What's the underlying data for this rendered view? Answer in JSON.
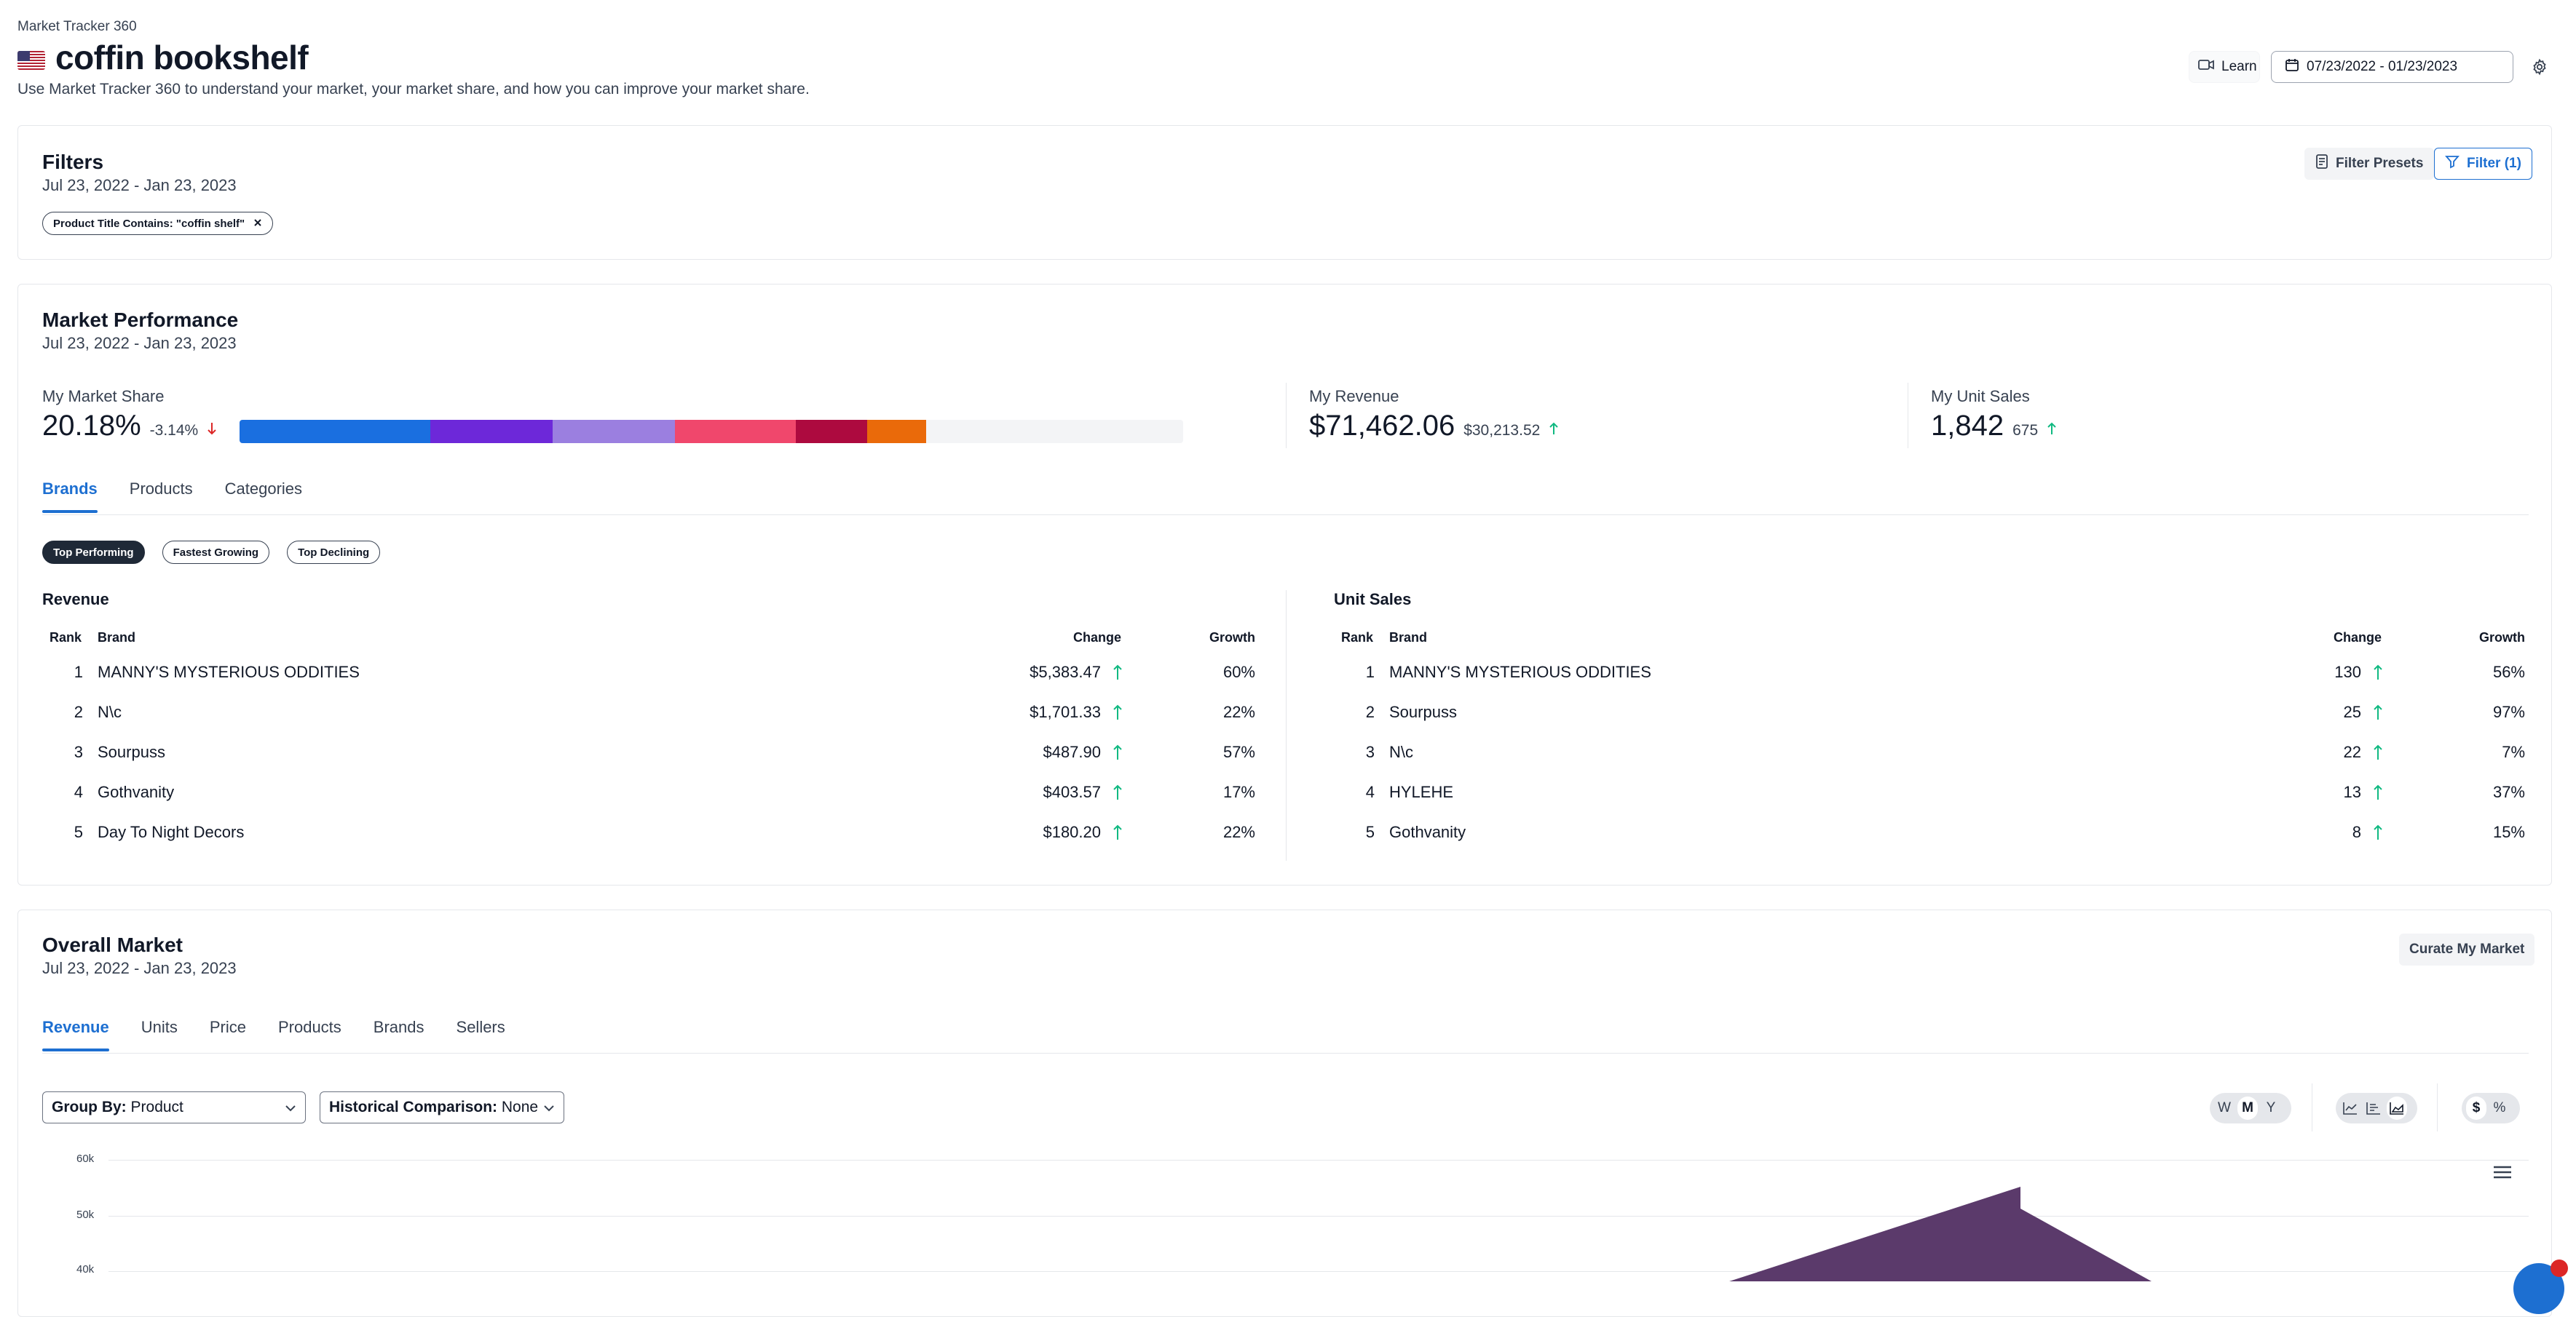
{
  "header": {
    "app_name": "Market Tracker 360",
    "title": "coffin bookshelf",
    "description": "Use Market Tracker 360 to understand your market, your market share, and how you can improve your market share.",
    "learn_label": "Learn",
    "date_range": "07/23/2022 - 01/23/2023"
  },
  "filters": {
    "title": "Filters",
    "date": "Jul 23, 2022 - Jan 23, 2023",
    "chip": "Product Title Contains: \"coffin shelf\"",
    "presets_label": "Filter Presets",
    "filter_label": "Filter (1)"
  },
  "performance": {
    "title": "Market Performance",
    "date": "Jul 23, 2022 - Jan 23, 2023",
    "market_share": {
      "label": "My Market Share",
      "value": "20.18%",
      "delta": "-3.14%"
    },
    "revenue": {
      "label": "My Revenue",
      "value": "$71,462.06",
      "delta": "$30,213.52"
    },
    "units": {
      "label": "My Unit Sales",
      "value": "1,842",
      "delta": "675"
    },
    "share_segments": [
      {
        "color": "#1a6fe0",
        "fraction": 0.2018
      },
      {
        "color": "#6d28d9",
        "fraction": 0.13
      },
      {
        "color": "#9b7fe0",
        "fraction": 0.13
      },
      {
        "color": "#f0476c",
        "fraction": 0.128
      },
      {
        "color": "#ad0a3f",
        "fraction": 0.075
      },
      {
        "color": "#ea6a0a",
        "fraction": 0.0625
      }
    ],
    "tabs": [
      "Brands",
      "Products",
      "Categories"
    ],
    "chips": [
      "Top Performing",
      "Fastest Growing",
      "Top Declining"
    ],
    "revenue_table": {
      "title": "Revenue",
      "headers": {
        "rank": "Rank",
        "brand": "Brand",
        "change": "Change",
        "growth": "Growth"
      },
      "rows": [
        {
          "rank": "1",
          "brand": "MANNY'S MYSTERIOUS ODDITIES",
          "change": "$5,383.47",
          "growth": "60%"
        },
        {
          "rank": "2",
          "brand": "N\\c",
          "change": "$1,701.33",
          "growth": "22%"
        },
        {
          "rank": "3",
          "brand": "Sourpuss",
          "change": "$487.90",
          "growth": "57%"
        },
        {
          "rank": "4",
          "brand": "Gothvanity",
          "change": "$403.57",
          "growth": "17%"
        },
        {
          "rank": "5",
          "brand": "Day To Night Decors",
          "change": "$180.20",
          "growth": "22%"
        }
      ]
    },
    "units_table": {
      "title": "Unit Sales",
      "headers": {
        "rank": "Rank",
        "brand": "Brand",
        "change": "Change",
        "growth": "Growth"
      },
      "rows": [
        {
          "rank": "1",
          "brand": "MANNY'S MYSTERIOUS ODDITIES",
          "change": "130",
          "growth": "56%"
        },
        {
          "rank": "2",
          "brand": "Sourpuss",
          "change": "25",
          "growth": "97%"
        },
        {
          "rank": "3",
          "brand": "N\\c",
          "change": "22",
          "growth": "7%"
        },
        {
          "rank": "4",
          "brand": "HYLEHE",
          "change": "13",
          "growth": "37%"
        },
        {
          "rank": "5",
          "brand": "Gothvanity",
          "change": "8",
          "growth": "15%"
        }
      ]
    }
  },
  "overall": {
    "title": "Overall Market",
    "date": "Jul 23, 2022 - Jan 23, 2023",
    "curate_label": "Curate My Market",
    "tabs": [
      "Revenue",
      "Units",
      "Price",
      "Products",
      "Brands",
      "Sellers"
    ],
    "group_by": {
      "label": "Group By:",
      "value": "Product"
    },
    "historical": {
      "label": "Historical Comparison:",
      "value": "None"
    },
    "period_options": [
      "W",
      "M",
      "Y"
    ],
    "currency_options": [
      "$",
      "%"
    ],
    "y_ticks": [
      "60k",
      "50k",
      "40k"
    ]
  },
  "colors": {
    "accent": "#1d6fd1",
    "up": "#10b981",
    "down": "#dc2626",
    "chart_area": "#5b3a6b"
  }
}
